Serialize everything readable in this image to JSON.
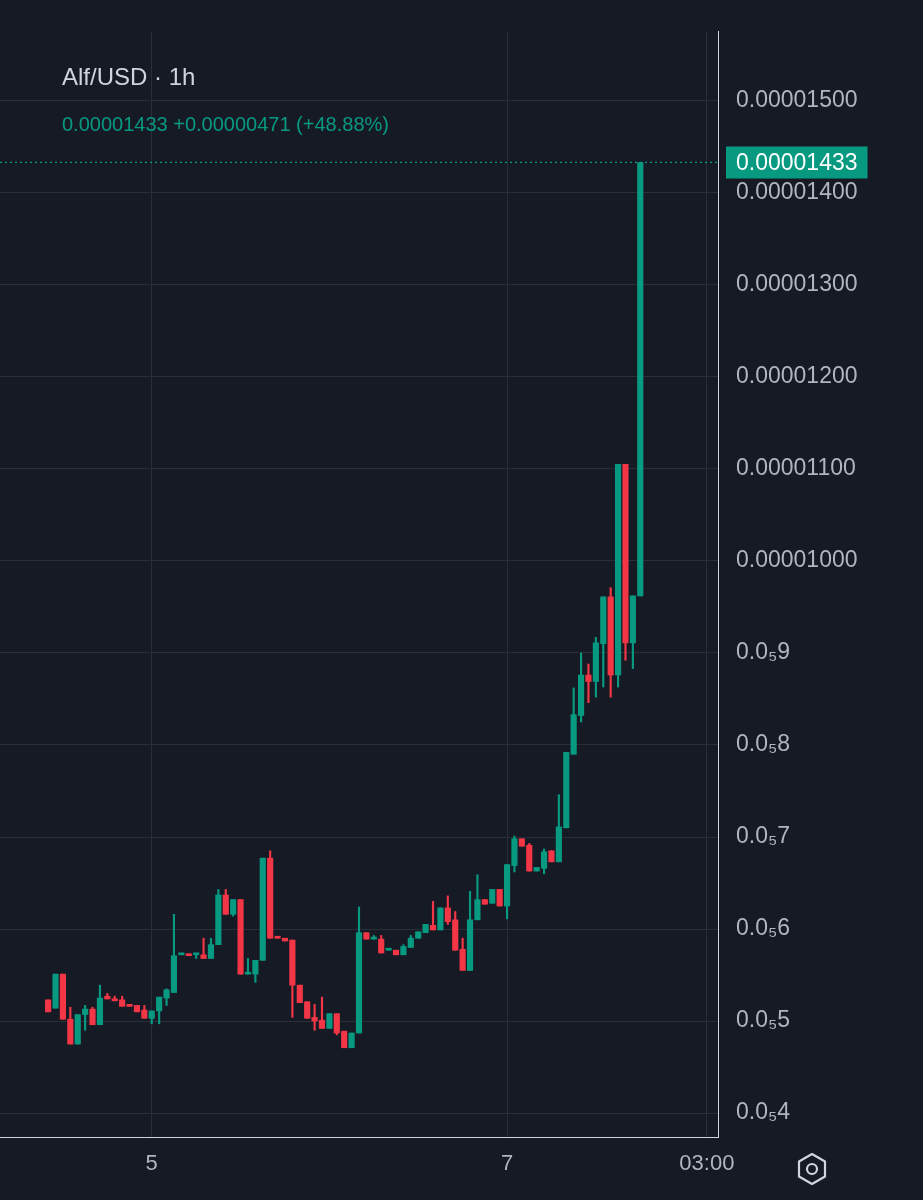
{
  "chart_data": {
    "type": "candlestick",
    "title": "Alf/USD · 1h",
    "annotations": [
      "0.00001433 +0.00000471 (+48.88%)"
    ],
    "categories": [
      null,
      null,
      null,
      null,
      null,
      null,
      null,
      null,
      null,
      null,
      null,
      null,
      null,
      null,
      null,
      null,
      null,
      null,
      null,
      null,
      "5",
      null,
      null,
      null,
      null,
      null,
      null,
      null,
      null,
      null,
      null,
      null,
      null,
      null,
      null,
      null,
      null,
      null,
      null,
      null,
      null,
      null,
      null,
      null,
      null,
      null,
      null,
      null,
      null,
      null,
      null,
      null,
      null,
      null,
      null,
      null,
      null,
      null,
      null,
      null,
      null,
      null,
      null,
      null,
      null,
      null,
      null,
      null,
      "7",
      null,
      null,
      null,
      null,
      null,
      null,
      null,
      null,
      null,
      null,
      null,
      null,
      null,
      null,
      null,
      null,
      null,
      null,
      null,
      null,
      null,
      null,
      null,
      null,
      null,
      null,
      "03:00",
      null
    ],
    "ohlc": [
      null,
      null,
      null,
      null,
      null,
      null,
      [
        5.23e-06,
        5.23e-06,
        5.1e-06,
        5.1e-06
      ],
      [
        5.14e-06,
        5.51e-06,
        5.14e-06,
        5.51e-06
      ],
      [
        5.51e-06,
        5.51e-06,
        5.02e-06,
        5.02e-06
      ],
      [
        5.02e-06,
        5.15e-06,
        4.75e-06,
        4.75e-06
      ],
      [
        4.75e-06,
        5.07e-06,
        4.75e-06,
        5.07e-06
      ],
      [
        5.07e-06,
        5.17e-06,
        4.9e-06,
        5.13e-06
      ],
      [
        5.13e-06,
        5.15e-06,
        4.96e-06,
        4.96e-06
      ],
      [
        4.96e-06,
        5.39e-06,
        4.96e-06,
        5.25e-06
      ],
      [
        5.27e-06,
        5.3e-06,
        5.24e-06,
        5.24e-06
      ],
      [
        5.24e-06,
        5.27e-06,
        5.22e-06,
        5.22e-06
      ],
      [
        5.23e-06,
        5.27e-06,
        5.16e-06,
        5.16e-06
      ],
      [
        5.17e-06,
        5.17e-06,
        5.16e-06,
        5.16e-06
      ],
      [
        5.17e-06,
        5.17e-06,
        5.1e-06,
        5.1e-06
      ],
      [
        5.12e-06,
        5.17e-06,
        5.03e-06,
        5.03e-06
      ],
      [
        5.03e-06,
        5.11e-06,
        4.97e-06,
        5.11e-06
      ],
      [
        5.11e-06,
        5.26e-06,
        4.97e-06,
        5.26e-06
      ],
      [
        5.25e-06,
        5.35e-06,
        5.17e-06,
        5.34e-06
      ],
      [
        5.31e-06,
        6.16e-06,
        5.31e-06,
        5.71e-06
      ],
      [
        5.72e-06,
        5.73e-06,
        5.72e-06,
        5.73e-06
      ],
      [
        5.73e-06,
        5.73e-06,
        5.71e-06,
        5.71e-06
      ],
      [
        5.72e-06,
        5.73e-06,
        5.68e-06,
        5.73e-06
      ],
      [
        5.72e-06,
        5.9e-06,
        5.68e-06,
        5.68e-06
      ],
      [
        5.68e-06,
        5.9e-06,
        5.68e-06,
        5.83e-06
      ],
      [
        5.83e-06,
        6.43e-06,
        5.83e-06,
        6.37e-06
      ],
      [
        6.37e-06,
        6.43e-06,
        6.16e-06,
        6.16e-06
      ],
      [
        6.16e-06,
        6.32e-06,
        6.14e-06,
        6.32e-06
      ],
      [
        6.32e-06,
        6.32e-06,
        5.51e-06,
        5.51e-06
      ],
      [
        5.51e-06,
        5.68e-06,
        5.51e-06,
        5.52e-06
      ],
      [
        5.51e-06,
        5.66e-06,
        5.42e-06,
        5.66e-06
      ],
      [
        5.66e-06,
        6.77e-06,
        5.66e-06,
        6.77e-06
      ],
      [
        6.77e-06,
        6.85e-06,
        5.9e-06,
        5.9e-06
      ],
      [
        5.92e-06,
        5.92e-06,
        5.9e-06,
        5.9e-06
      ],
      [
        5.9e-06,
        5.9e-06,
        5.87e-06,
        5.87e-06
      ],
      [
        5.88e-06,
        5.88e-06,
        5.04e-06,
        5.39e-06
      ],
      [
        5.39e-06,
        5.39e-06,
        5.2e-06,
        5.2e-06
      ],
      [
        5.21e-06,
        5.21e-06,
        5.03e-06,
        5.03e-06
      ],
      [
        5.04e-06,
        5.18e-06,
        4.9e-06,
        5e-06
      ],
      [
        5.01e-06,
        5.26e-06,
        4.92e-06,
        4.92e-06
      ],
      [
        4.92e-06,
        5.08e-06,
        4.92e-06,
        5.08e-06
      ],
      [
        5.08e-06,
        5.08e-06,
        4.85e-06,
        4.87e-06
      ],
      [
        4.89e-06,
        4.89e-06,
        4.71e-06,
        4.71e-06
      ],
      [
        4.71e-06,
        4.87e-06,
        4.71e-06,
        4.87e-06
      ],
      [
        4.87e-06,
        6.24e-06,
        4.87e-06,
        5.96e-06
      ],
      [
        5.96e-06,
        5.96e-06,
        5.89e-06,
        5.89e-06
      ],
      [
        5.89e-06,
        5.93e-06,
        5.89e-06,
        5.9e-06
      ],
      [
        5.89e-06,
        5.93e-06,
        5.74e-06,
        5.74e-06
      ],
      [
        5.77e-06,
        5.78e-06,
        5.77e-06,
        5.78e-06
      ],
      [
        5.77e-06,
        5.77e-06,
        5.72e-06,
        5.72e-06
      ],
      [
        5.72e-06,
        5.83e-06,
        5.72e-06,
        5.81e-06
      ],
      [
        5.8e-06,
        5.93e-06,
        5.8e-06,
        5.9e-06
      ],
      [
        5.9e-06,
        5.97e-06,
        5.9e-06,
        5.97e-06
      ],
      [
        5.96e-06,
        6.05e-06,
        5.96e-06,
        6.05e-06
      ],
      [
        6.04e-06,
        6.3e-06,
        5.99e-06,
        5.99e-06
      ],
      [
        5.99e-06,
        6.23e-06,
        5.99e-06,
        6.23e-06
      ],
      [
        6.23e-06,
        6.36e-06,
        6.05e-06,
        6.08e-06
      ],
      [
        6.1e-06,
        6.19e-06,
        5.77e-06,
        5.77e-06
      ],
      [
        5.78e-06,
        5.9e-06,
        5.55e-06,
        5.55e-06
      ],
      [
        5.55e-06,
        6.41e-06,
        5.55e-06,
        6.1e-06
      ],
      [
        6.1e-06,
        6.59e-06,
        6.1e-06,
        6.32e-06
      ],
      [
        6.32e-06,
        6.32e-06,
        6.27e-06,
        6.27e-06
      ],
      [
        6.28e-06,
        6.43e-06,
        6.28e-06,
        6.43e-06
      ],
      [
        6.43e-06,
        6.43e-06,
        6.25e-06,
        6.25e-06
      ],
      [
        6.25e-06,
        6.7e-06,
        6.11e-06,
        6.7e-06
      ],
      [
        6.69e-06,
        7.01e-06,
        6.62e-06,
        6.98e-06
      ],
      [
        6.98e-06,
        6.98e-06,
        6.9e-06,
        6.9e-06
      ],
      [
        6.91e-06,
        6.93e-06,
        6.63e-06,
        6.63e-06
      ],
      [
        6.63e-06,
        6.67e-06,
        6.63e-06,
        6.67e-06
      ],
      [
        6.66e-06,
        6.87e-06,
        6.6e-06,
        6.84e-06
      ],
      [
        6.85e-06,
        6.85e-06,
        6.73e-06,
        6.73e-06
      ],
      [
        6.73e-06,
        7.46e-06,
        6.73e-06,
        7.11e-06
      ],
      [
        7.1e-06,
        7.92e-06,
        7.1e-06,
        7.92e-06
      ],
      [
        7.9e-06,
        8.62e-06,
        7.9e-06,
        8.33e-06
      ],
      [
        8.32e-06,
        9e-06,
        8.25e-06,
        8.76e-06
      ],
      [
        8.76e-06,
        8.88e-06,
        8.46e-06,
        8.69e-06
      ],
      [
        8.69e-06,
        9.17e-06,
        8.52e-06,
        9.11e-06
      ],
      [
        9.1e-06,
        9.61e-06,
        8.63e-06,
        9.61e-06
      ],
      [
        9.61e-06,
        9.71e-06,
        8.52e-06,
        8.76e-06
      ],
      [
        8.76e-06,
        1.105e-05,
        8.63e-06,
        1.105e-05
      ],
      [
        1.105e-05,
        1.105e-05,
        8.92e-06,
        9.11e-06
      ],
      [
        9.11e-06,
        9.62e-06,
        8.83e-06,
        9.62e-06
      ],
      [
        9.62e-06,
        1.433e-05,
        9.62e-06,
        1.433e-05
      ],
      null,
      null,
      null,
      null,
      null,
      null,
      null,
      null,
      null,
      null
    ],
    "colors": [
      null,
      null,
      null,
      null,
      null,
      null,
      "#f23645",
      "#089981",
      "#f23645",
      "#f23645",
      "#089981",
      "#089981",
      "#f23645",
      "#089981",
      "#f23645",
      "#f23645",
      "#f23645",
      "#f23645",
      "#f23645",
      "#f23645",
      "#089981",
      "#089981",
      "#089981",
      "#089981",
      "#089981",
      "#f23645",
      "#089981",
      "#f23645",
      "#089981",
      "#089981",
      "#f23645",
      "#089981",
      "#f23645",
      "#089981",
      "#089981",
      "#089981",
      "#f23645",
      "#f23645",
      "#f23645",
      "#f23645",
      "#f23645",
      "#f23645",
      "#f23645",
      "#f23645",
      "#089981",
      "#f23645",
      "#f23645",
      "#089981",
      "#089981",
      "#f23645",
      "#089981",
      "#f23645",
      "#089981",
      "#f23645",
      "#089981",
      "#089981",
      "#089981",
      "#089981",
      "#f23645",
      "#089981",
      "#f23645",
      "#f23645",
      "#f23645",
      "#089981",
      "#089981",
      "#f23645",
      "#089981",
      "#f23645",
      "#089981",
      "#089981",
      "#f23645",
      "#f23645",
      "#089981",
      "#089981",
      "#f23645",
      "#089981",
      "#089981",
      "#089981",
      "#089981",
      "#f23645",
      "#089981",
      "#089981",
      "#f23645",
      "#089981",
      "#f23645",
      "#089981",
      "#089981",
      null,
      null,
      null,
      null,
      null,
      null,
      null,
      null,
      null,
      null
    ],
    "ylim": [
      3.74e-06,
      1.575e-05
    ],
    "yticks": [
      {
        "value": 4e-06,
        "label": "0.0₅4"
      },
      {
        "value": 5e-06,
        "label": "0.0₅5"
      },
      {
        "value": 6e-06,
        "label": "0.0₅6"
      },
      {
        "value": 7e-06,
        "label": "0.0₅7"
      },
      {
        "value": 8e-06,
        "label": "0.0₅8"
      },
      {
        "value": 9e-06,
        "label": "0.0₅9"
      },
      {
        "value": 1e-05,
        "label": "0.00001000"
      },
      {
        "value": 1.1e-05,
        "label": "0.00001100"
      },
      {
        "value": 1.2e-05,
        "label": "0.00001200"
      },
      {
        "value": 1.3e-05,
        "label": "0.00001300"
      },
      {
        "value": 1.4e-05,
        "label": "0.00001400"
      },
      {
        "value": 1.5e-05,
        "label": "0.00001500"
      }
    ],
    "grid": true,
    "ref_lines": [
      {
        "axis": "y",
        "value": 1.433e-05,
        "label": "0.00001433",
        "color": "#089981",
        "line_style": "dotted"
      }
    ]
  }
}
